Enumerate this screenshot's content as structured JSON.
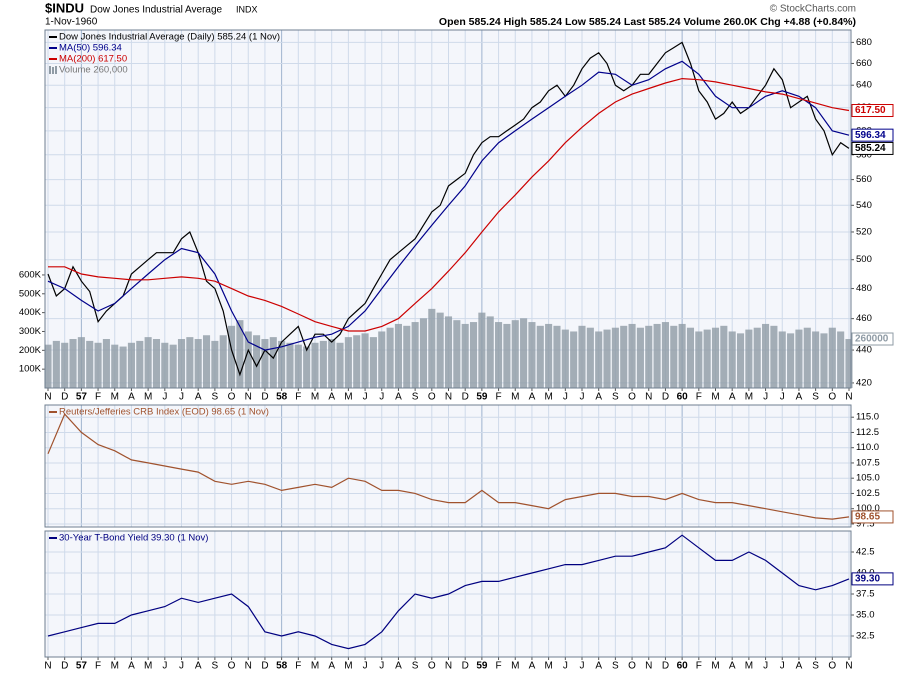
{
  "header": {
    "symbol": "$INDU",
    "name": "Dow Jones Industrial Average",
    "exchange": "INDX",
    "date": "1-Nov-1960",
    "quote": "Open 585.24 High 585.24 Low 585.24 Last 585.24 Volume 260.0K Chg +4.88 (+0.84%)",
    "credit": "© StockCharts.com"
  },
  "chart_data": [
    {
      "type": "line",
      "log_scale": true,
      "grid": true,
      "legend_corner": "top-left",
      "xlim": [
        0,
        48
      ],
      "xticks": [
        {
          "value": 0,
          "label": "N"
        },
        {
          "value": 1,
          "label": "D"
        },
        {
          "value": 2,
          "label": "57"
        },
        {
          "value": 3,
          "label": "F"
        },
        {
          "value": 4,
          "label": "M"
        },
        {
          "value": 5,
          "label": "A"
        },
        {
          "value": 6,
          "label": "M"
        },
        {
          "value": 7,
          "label": "J"
        },
        {
          "value": 8,
          "label": "J"
        },
        {
          "value": 9,
          "label": "A"
        },
        {
          "value": 10,
          "label": "S"
        },
        {
          "value": 11,
          "label": "O"
        },
        {
          "value": 12,
          "label": "N"
        },
        {
          "value": 13,
          "label": "D"
        },
        {
          "value": 14,
          "label": "58"
        },
        {
          "value": 15,
          "label": "F"
        },
        {
          "value": 16,
          "label": "M"
        },
        {
          "value": 17,
          "label": "A"
        },
        {
          "value": 18,
          "label": "M"
        },
        {
          "value": 19,
          "label": "J"
        },
        {
          "value": 20,
          "label": "J"
        },
        {
          "value": 21,
          "label": "A"
        },
        {
          "value": 22,
          "label": "S"
        },
        {
          "value": 23,
          "label": "O"
        },
        {
          "value": 24,
          "label": "N"
        },
        {
          "value": 25,
          "label": "D"
        },
        {
          "value": 26,
          "label": "59"
        },
        {
          "value": 27,
          "label": "F"
        },
        {
          "value": 28,
          "label": "M"
        },
        {
          "value": 29,
          "label": "A"
        },
        {
          "value": 30,
          "label": "M"
        },
        {
          "value": 31,
          "label": "J"
        },
        {
          "value": 32,
          "label": "J"
        },
        {
          "value": 33,
          "label": "A"
        },
        {
          "value": 34,
          "label": "S"
        },
        {
          "value": 35,
          "label": "O"
        },
        {
          "value": 36,
          "label": "N"
        },
        {
          "value": 37,
          "label": "D"
        },
        {
          "value": 38,
          "label": "60"
        },
        {
          "value": 39,
          "label": "F"
        },
        {
          "value": 40,
          "label": "M"
        },
        {
          "value": 41,
          "label": "A"
        },
        {
          "value": 42,
          "label": "M"
        },
        {
          "value": 43,
          "label": "J"
        },
        {
          "value": 44,
          "label": "J"
        },
        {
          "value": 45,
          "label": "A"
        },
        {
          "value": 46,
          "label": "S"
        },
        {
          "value": 47,
          "label": "O"
        },
        {
          "value": 48,
          "label": "N"
        }
      ],
      "ylim": [
        417,
        692
      ],
      "yticks": [
        420,
        440,
        460,
        480,
        500,
        520,
        540,
        560,
        580,
        600,
        620,
        640,
        660,
        680
      ],
      "y2lim": [
        0,
        1900000
      ],
      "y2ticks": [
        {
          "value": 100000,
          "label": "100K"
        },
        {
          "value": 200000,
          "label": "200K"
        },
        {
          "value": 300000,
          "label": "300K"
        },
        {
          "value": 400000,
          "label": "400K"
        },
        {
          "value": 500000,
          "label": "500K"
        },
        {
          "value": 600000,
          "label": "600K"
        }
      ],
      "series": [
        {
          "name": "Dow Jones Industrial Average (Daily) 585.24 (1 Nov)",
          "color": "#000000",
          "values": [
            490,
            475,
            480,
            495,
            485,
            478,
            458,
            465,
            470,
            475,
            490,
            495,
            500,
            505,
            505,
            505,
            515,
            520,
            505,
            485,
            480,
            465,
            440,
            425,
            440,
            430,
            440,
            435,
            445,
            450,
            455,
            440,
            450,
            450,
            445,
            450,
            460,
            465,
            470,
            480,
            490,
            500,
            505,
            510,
            515,
            525,
            535,
            540,
            555,
            560,
            565,
            580,
            590,
            595,
            595,
            600,
            605,
            610,
            620,
            625,
            635,
            640,
            630,
            640,
            655,
            665,
            670,
            660,
            640,
            635,
            640,
            650,
            650,
            660,
            670,
            675,
            680,
            660,
            635,
            625,
            610,
            615,
            625,
            615,
            620,
            630,
            640,
            655,
            645,
            620,
            625,
            630,
            610,
            600,
            580,
            590,
            585.24
          ]
        },
        {
          "name": "MA(50) 596.34",
          "color": "#00008b",
          "values": [
            485,
            480,
            472,
            465,
            470,
            480,
            490,
            500,
            508,
            505,
            490,
            465,
            445,
            440,
            442,
            445,
            448,
            450,
            455,
            465,
            480,
            495,
            510,
            525,
            540,
            555,
            575,
            590,
            600,
            610,
            620,
            630,
            640,
            652,
            650,
            640,
            645,
            655,
            662,
            650,
            630,
            620,
            620,
            630,
            635,
            630,
            620,
            600,
            596.34
          ]
        },
        {
          "name": "MA(200) 617.50",
          "color": "#cc0000",
          "last_label": "617.50",
          "values": [
            495,
            495,
            490,
            488,
            487,
            486,
            486,
            487,
            488,
            487,
            485,
            480,
            475,
            472,
            468,
            463,
            458,
            455,
            452,
            452,
            455,
            460,
            470,
            480,
            492,
            505,
            520,
            535,
            548,
            562,
            575,
            590,
            603,
            615,
            625,
            632,
            637,
            642,
            646,
            645,
            643,
            640,
            637,
            634,
            632,
            628,
            624,
            620,
            617.5
          ]
        },
        {
          "name": "Volume 260,000",
          "color": "#8f9ba5",
          "type": "bar",
          "axis": "y2",
          "values": [
            230000,
            250000,
            240000,
            260000,
            270000,
            250000,
            240000,
            260000,
            230000,
            220000,
            240000,
            250000,
            270000,
            260000,
            240000,
            230000,
            260000,
            270000,
            260000,
            280000,
            250000,
            280000,
            330000,
            360000,
            300000,
            280000,
            260000,
            270000,
            250000,
            240000,
            230000,
            220000,
            240000,
            250000,
            260000,
            240000,
            270000,
            280000,
            290000,
            270000,
            300000,
            320000,
            340000,
            330000,
            350000,
            370000,
            420000,
            400000,
            380000,
            360000,
            340000,
            350000,
            400000,
            380000,
            350000,
            340000,
            360000,
            370000,
            350000,
            330000,
            340000,
            330000,
            310000,
            300000,
            330000,
            320000,
            300000,
            310000,
            320000,
            330000,
            340000,
            320000,
            330000,
            340000,
            350000,
            330000,
            340000,
            320000,
            300000,
            310000,
            320000,
            330000,
            300000,
            290000,
            310000,
            320000,
            340000,
            330000,
            300000,
            290000,
            310000,
            320000,
            300000,
            290000,
            320000,
            300000,
            260000
          ]
        }
      ]
    },
    {
      "type": "line",
      "grid": true,
      "legend_corner": "top-left",
      "xlim": [
        0,
        48
      ],
      "ylim": [
        97,
        117
      ],
      "yticks": [
        97.5,
        {
          "value": 100,
          "label": "100.0"
        },
        102.5,
        {
          "value": 105,
          "label": "105.0"
        },
        107.5,
        {
          "value": 110,
          "label": "110.0"
        },
        112.5,
        {
          "value": 115,
          "label": "115.0"
        }
      ],
      "series": [
        {
          "name": "Reuters/Jefferies CRB Index (EOD) 98.65 (1 Nov)",
          "color": "#a0522d",
          "values": [
            109,
            115.5,
            112.5,
            110.5,
            109.5,
            108,
            107.5,
            107,
            106.5,
            106,
            104.5,
            104,
            104.5,
            104,
            103,
            103.5,
            104,
            103.5,
            105,
            104.5,
            103,
            103,
            102.5,
            101.5,
            101,
            101,
            103,
            101,
            101,
            100.5,
            100,
            101.5,
            102,
            102.5,
            102.5,
            102,
            102,
            101.5,
            102.5,
            101.5,
            101,
            101,
            100.5,
            100,
            99.5,
            99,
            98.5,
            98.3,
            98.65
          ]
        }
      ]
    },
    {
      "type": "line",
      "grid": true,
      "legend_corner": "top-left",
      "xlim": [
        0,
        48
      ],
      "xticks": [
        {
          "value": 0,
          "label": "N"
        },
        {
          "value": 1,
          "label": "D"
        },
        {
          "value": 2,
          "label": "57"
        },
        {
          "value": 3,
          "label": "F"
        },
        {
          "value": 4,
          "label": "M"
        },
        {
          "value": 5,
          "label": "A"
        },
        {
          "value": 6,
          "label": "M"
        },
        {
          "value": 7,
          "label": "J"
        },
        {
          "value": 8,
          "label": "J"
        },
        {
          "value": 9,
          "label": "A"
        },
        {
          "value": 10,
          "label": "S"
        },
        {
          "value": 11,
          "label": "O"
        },
        {
          "value": 12,
          "label": "N"
        },
        {
          "value": 13,
          "label": "D"
        },
        {
          "value": 14,
          "label": "58"
        },
        {
          "value": 15,
          "label": "F"
        },
        {
          "value": 16,
          "label": "M"
        },
        {
          "value": 17,
          "label": "A"
        },
        {
          "value": 18,
          "label": "M"
        },
        {
          "value": 19,
          "label": "J"
        },
        {
          "value": 20,
          "label": "J"
        },
        {
          "value": 21,
          "label": "A"
        },
        {
          "value": 22,
          "label": "S"
        },
        {
          "value": 23,
          "label": "O"
        },
        {
          "value": 24,
          "label": "N"
        },
        {
          "value": 25,
          "label": "D"
        },
        {
          "value": 26,
          "label": "59"
        },
        {
          "value": 27,
          "label": "F"
        },
        {
          "value": 28,
          "label": "M"
        },
        {
          "value": 29,
          "label": "A"
        },
        {
          "value": 30,
          "label": "M"
        },
        {
          "value": 31,
          "label": "J"
        },
        {
          "value": 32,
          "label": "J"
        },
        {
          "value": 33,
          "label": "A"
        },
        {
          "value": 34,
          "label": "S"
        },
        {
          "value": 35,
          "label": "O"
        },
        {
          "value": 36,
          "label": "N"
        },
        {
          "value": 37,
          "label": "D"
        },
        {
          "value": 38,
          "label": "60"
        },
        {
          "value": 39,
          "label": "F"
        },
        {
          "value": 40,
          "label": "M"
        },
        {
          "value": 41,
          "label": "A"
        },
        {
          "value": 42,
          "label": "M"
        },
        {
          "value": 43,
          "label": "J"
        },
        {
          "value": 44,
          "label": "J"
        },
        {
          "value": 45,
          "label": "A"
        },
        {
          "value": 46,
          "label": "S"
        },
        {
          "value": 47,
          "label": "O"
        },
        {
          "value": 48,
          "label": "N"
        }
      ],
      "ylim": [
        30,
        45
      ],
      "yticks": [
        32.5,
        {
          "value": 35,
          "label": "35.0"
        },
        37.5,
        {
          "value": 40,
          "label": "40.0"
        },
        42.5
      ],
      "series": [
        {
          "name": "30-Year T-Bond Yield 39.30 (1 Nov)",
          "color": "#000080",
          "last_label": "39.30",
          "values": [
            32.5,
            33,
            33.5,
            34,
            34,
            35,
            35.5,
            36,
            37,
            36.5,
            37,
            37.5,
            36,
            33,
            32.5,
            33,
            32.5,
            31.5,
            31,
            31.5,
            33,
            35.5,
            37.5,
            37,
            37.5,
            38.5,
            39,
            39,
            39.5,
            40,
            40.5,
            41,
            41,
            41.5,
            42,
            42,
            42.5,
            43,
            44.5,
            43,
            41.5,
            41.5,
            42.5,
            41.5,
            40,
            38.5,
            38,
            38.5,
            39.3
          ]
        }
      ]
    }
  ]
}
